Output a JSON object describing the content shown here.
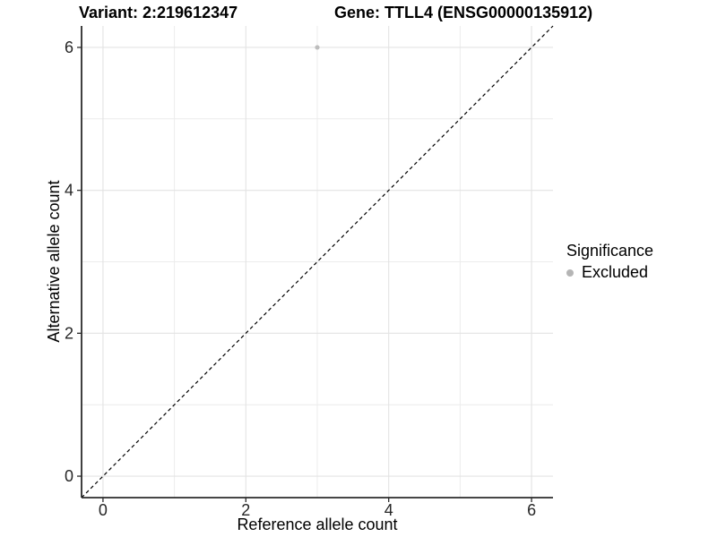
{
  "header": {
    "title_variant": "Variant: 2:219612347",
    "title_gene": "Gene: TTLL4 (ENSG00000135912)"
  },
  "chart_data": {
    "type": "scatter",
    "title_variant": "Variant: 2:219612347",
    "title_gene": "Gene: TTLL4 (ENSG00000135912)",
    "xlabel": "Reference allele count",
    "ylabel": "Alternative allele count",
    "xlim": [
      -0.3,
      6.3
    ],
    "ylim": [
      -0.3,
      6.3
    ],
    "x_ticks": [
      0,
      2,
      4,
      6
    ],
    "y_ticks": [
      0,
      2,
      4,
      6
    ],
    "x_minor_ticks": [
      1,
      3,
      5
    ],
    "y_minor_ticks": [
      1,
      3,
      5
    ],
    "grid": true,
    "legend_position": "right",
    "series": [
      {
        "name": "Excluded",
        "color": "#bdbdbd",
        "points": [
          {
            "x": 3,
            "y": 6
          }
        ]
      }
    ],
    "identity_line": {
      "style": "dashed",
      "from": -0.3,
      "to": 6.3,
      "color": "#000000"
    },
    "legend": {
      "title": "Significance",
      "entries": [
        {
          "label": "Excluded",
          "color": "#b5b5b5"
        }
      ]
    },
    "colors": {
      "background": "#ffffff",
      "grid_major": "#e3e3e3",
      "grid_minor": "#ececec",
      "axis_line": "#2b2b2b",
      "tick_label": "#262626",
      "point": "#bdbdbd",
      "legend_key": "#b5b5b5"
    }
  }
}
